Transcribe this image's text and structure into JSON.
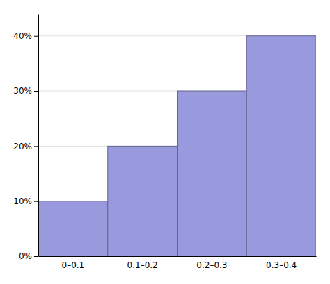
{
  "chart_data": {
    "type": "bar",
    "categories": [
      "0–0.1",
      "0.1–0.2",
      "0.2–0.3",
      "0.3–0.4"
    ],
    "values": [
      0.1,
      0.2,
      0.3,
      0.4
    ],
    "color": "#9999dd",
    "ylim": [
      0,
      0.44
    ],
    "yticks": [
      {
        "value": 0.0,
        "label": "0%"
      },
      {
        "value": 0.1,
        "label": "10%"
      },
      {
        "value": 0.2,
        "label": "20%"
      },
      {
        "value": 0.3,
        "label": "30%"
      },
      {
        "value": 0.4,
        "label": "40%"
      }
    ],
    "grid": true
  }
}
